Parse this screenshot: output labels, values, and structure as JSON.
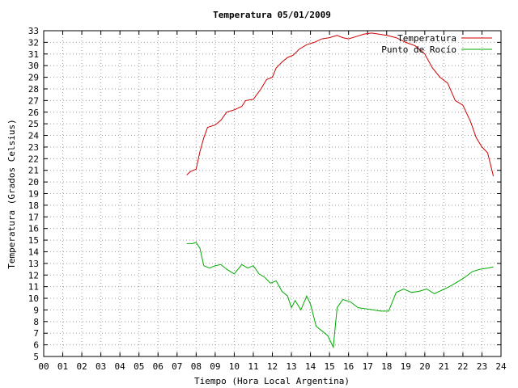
{
  "chart_data": {
    "type": "line",
    "title": "Temperatura 05/01/2009",
    "xlabel": "Tiempo (Hora Local Argentina)",
    "ylabel": "Temperatura (Grados Celsius)",
    "xlim": [
      0,
      24
    ],
    "ylim": [
      5,
      33
    ],
    "x_ticks": [
      "00",
      "01",
      "02",
      "03",
      "04",
      "05",
      "06",
      "07",
      "08",
      "09",
      "10",
      "11",
      "12",
      "13",
      "14",
      "15",
      "16",
      "17",
      "18",
      "19",
      "20",
      "21",
      "22",
      "23",
      "24"
    ],
    "y_ticks": [
      "5",
      "6",
      "7",
      "8",
      "9",
      "10",
      "11",
      "12",
      "13",
      "14",
      "15",
      "16",
      "17",
      "18",
      "19",
      "20",
      "21",
      "22",
      "23",
      "24",
      "25",
      "26",
      "27",
      "28",
      "29",
      "30",
      "31",
      "32",
      "33"
    ],
    "grid": true,
    "legend_position": "top-right",
    "series": [
      {
        "name": "Temperatura",
        "color": "#cc0000",
        "points": [
          [
            7.5,
            20.6
          ],
          [
            7.7,
            20.9
          ],
          [
            8.0,
            21.1
          ],
          [
            8.2,
            22.6
          ],
          [
            8.4,
            23.8
          ],
          [
            8.6,
            24.7
          ],
          [
            9.0,
            24.9
          ],
          [
            9.3,
            25.3
          ],
          [
            9.6,
            26.0
          ],
          [
            10.0,
            26.2
          ],
          [
            10.4,
            26.5
          ],
          [
            10.6,
            27.0
          ],
          [
            11.0,
            27.1
          ],
          [
            11.4,
            28.0
          ],
          [
            11.7,
            28.8
          ],
          [
            12.0,
            29.0
          ],
          [
            12.2,
            29.8
          ],
          [
            12.5,
            30.3
          ],
          [
            12.8,
            30.7
          ],
          [
            13.1,
            30.9
          ],
          [
            13.4,
            31.4
          ],
          [
            13.8,
            31.8
          ],
          [
            14.2,
            32.0
          ],
          [
            14.6,
            32.3
          ],
          [
            15.0,
            32.4
          ],
          [
            15.4,
            32.6
          ],
          [
            15.7,
            32.4
          ],
          [
            16.0,
            32.3
          ],
          [
            16.4,
            32.5
          ],
          [
            16.8,
            32.7
          ],
          [
            17.2,
            32.8
          ],
          [
            17.6,
            32.7
          ],
          [
            18.0,
            32.6
          ],
          [
            18.5,
            32.4
          ],
          [
            19.0,
            32.0
          ],
          [
            19.5,
            31.7
          ],
          [
            20.0,
            31.0
          ],
          [
            20.4,
            29.8
          ],
          [
            20.8,
            29.0
          ],
          [
            21.2,
            28.5
          ],
          [
            21.6,
            27.0
          ],
          [
            22.0,
            26.6
          ],
          [
            22.4,
            25.2
          ],
          [
            22.7,
            23.8
          ],
          [
            23.0,
            23.0
          ],
          [
            23.3,
            22.5
          ],
          [
            23.6,
            20.5
          ]
        ]
      },
      {
        "name": "Punto de Rocío",
        "color": "#00aa00",
        "points": [
          [
            7.5,
            14.7
          ],
          [
            7.8,
            14.7
          ],
          [
            8.0,
            14.8
          ],
          [
            8.2,
            14.3
          ],
          [
            8.4,
            12.8
          ],
          [
            8.7,
            12.6
          ],
          [
            9.0,
            12.8
          ],
          [
            9.3,
            12.9
          ],
          [
            9.6,
            12.5
          ],
          [
            10.0,
            12.1
          ],
          [
            10.4,
            12.9
          ],
          [
            10.7,
            12.6
          ],
          [
            11.0,
            12.8
          ],
          [
            11.3,
            12.1
          ],
          [
            11.6,
            11.8
          ],
          [
            11.9,
            11.3
          ],
          [
            12.2,
            11.5
          ],
          [
            12.5,
            10.6
          ],
          [
            12.8,
            10.2
          ],
          [
            13.0,
            9.2
          ],
          [
            13.2,
            9.8
          ],
          [
            13.5,
            9.0
          ],
          [
            13.8,
            10.2
          ],
          [
            14.0,
            9.5
          ],
          [
            14.3,
            7.6
          ],
          [
            14.6,
            7.2
          ],
          [
            14.9,
            6.8
          ],
          [
            15.2,
            5.8
          ],
          [
            15.4,
            9.2
          ],
          [
            15.7,
            9.9
          ],
          [
            16.1,
            9.7
          ],
          [
            16.5,
            9.2
          ],
          [
            16.9,
            9.1
          ],
          [
            17.3,
            9.0
          ],
          [
            17.7,
            8.9
          ],
          [
            18.1,
            8.9
          ],
          [
            18.5,
            10.5
          ],
          [
            18.9,
            10.8
          ],
          [
            19.3,
            10.5
          ],
          [
            19.7,
            10.6
          ],
          [
            20.1,
            10.8
          ],
          [
            20.5,
            10.4
          ],
          [
            20.9,
            10.7
          ],
          [
            21.3,
            11.0
          ],
          [
            21.7,
            11.4
          ],
          [
            22.1,
            11.8
          ],
          [
            22.5,
            12.3
          ],
          [
            22.9,
            12.5
          ],
          [
            23.3,
            12.6
          ],
          [
            23.6,
            12.7
          ]
        ]
      }
    ]
  }
}
